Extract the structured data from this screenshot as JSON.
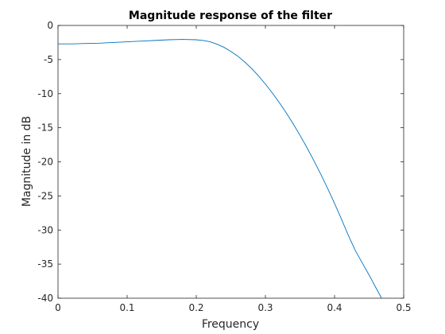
{
  "chart_data": {
    "type": "line",
    "title": "Magnitude response of the filter",
    "xlabel": "Frequency",
    "ylabel": "Magnitude in dB",
    "xlim": [
      0,
      0.5
    ],
    "ylim": [
      -40,
      0
    ],
    "xticks": [
      0,
      0.1,
      0.2,
      0.3,
      0.4,
      0.5
    ],
    "xtick_labels": [
      "0",
      "0.1",
      "0.2",
      "0.3",
      "0.4",
      "0.5"
    ],
    "yticks": [
      0,
      -5,
      -10,
      -15,
      -20,
      -25,
      -30,
      -35,
      -40
    ],
    "ytick_labels": [
      "0",
      "-5",
      "-10",
      "-15",
      "-20",
      "-25",
      "-30",
      "-35",
      "-40"
    ],
    "grid": false,
    "line_color": "#0072BD",
    "series": [
      {
        "x": [
          0,
          0.02,
          0.04,
          0.06,
          0.08,
          0.1,
          0.12,
          0.14,
          0.16,
          0.18,
          0.2,
          0.21,
          0.22,
          0.23,
          0.24,
          0.25,
          0.26,
          0.27,
          0.28,
          0.29,
          0.3,
          0.31,
          0.32,
          0.33,
          0.34,
          0.35,
          0.36,
          0.37,
          0.38,
          0.39,
          0.4,
          0.41,
          0.42,
          0.43,
          0.44,
          0.45,
          0.46,
          0.468
        ],
        "y": [
          -2.7,
          -2.7,
          -2.65,
          -2.6,
          -2.5,
          -2.4,
          -2.3,
          -2.2,
          -2.1,
          -2.05,
          -2.1,
          -2.2,
          -2.4,
          -2.75,
          -3.2,
          -3.8,
          -4.5,
          -5.35,
          -6.3,
          -7.4,
          -8.6,
          -9.9,
          -11.3,
          -12.8,
          -14.4,
          -16.1,
          -17.9,
          -19.8,
          -21.8,
          -23.9,
          -26.1,
          -28.4,
          -30.8,
          -33.0,
          -34.8,
          -36.6,
          -38.5,
          -40
        ]
      }
    ]
  }
}
